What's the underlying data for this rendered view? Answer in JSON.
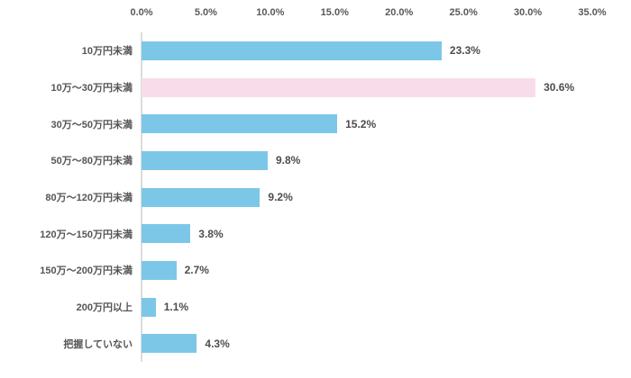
{
  "chart_data": {
    "type": "bar",
    "orientation": "horizontal",
    "categories": [
      "10万円未満",
      "10万〜30万円未満",
      "30万〜50万円未満",
      "50万〜80万円未満",
      "80万〜120万円未満",
      "120万〜150万円未満",
      "150万〜200万円未満",
      "200万円以上",
      "把握していない"
    ],
    "values": [
      23.3,
      30.6,
      15.2,
      9.8,
      9.2,
      3.8,
      2.7,
      1.1,
      4.3
    ],
    "value_labels": [
      "23.3%",
      "30.6%",
      "15.2%",
      "9.8%",
      "9.2%",
      "3.8%",
      "2.7%",
      "1.1%",
      "4.3%"
    ],
    "highlight_index": 1,
    "x_ticks": [
      "0.0%",
      "5.0%",
      "10.0%",
      "15.0%",
      "20.0%",
      "25.0%",
      "30.0%",
      "35.0%"
    ],
    "x_tick_values": [
      0,
      5,
      10,
      15,
      20,
      25,
      30,
      35
    ],
    "xlim": [
      0,
      35
    ],
    "title": "",
    "xlabel": "",
    "ylabel": "",
    "grid": false,
    "legend": false,
    "colors": {
      "bar": "#7cc7e8",
      "highlight": "#f8dce9",
      "axis_line": "#dcdcdc",
      "tick_text": "#595959",
      "label_text": "#555555",
      "value_text": "#4d4d4d",
      "background": "#ffffff"
    }
  }
}
